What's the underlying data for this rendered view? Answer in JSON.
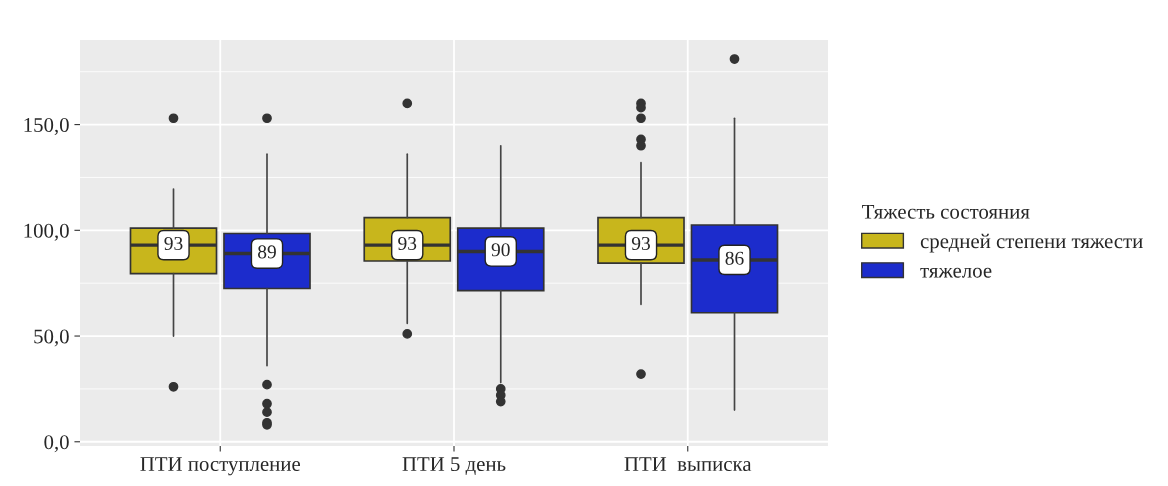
{
  "chart_data": {
    "type": "box",
    "categories": [
      "ПТИ поступление",
      "ПТИ 5 день",
      "ПТИ  выписка"
    ],
    "legend_title": "Тяжесть состояния",
    "legend": "right",
    "grid": true,
    "ylim": [
      -2,
      190
    ],
    "yticks": [
      {
        "value": 0,
        "label": "0,0"
      },
      {
        "value": 50,
        "label": "50,0"
      },
      {
        "value": 100,
        "label": "100,0"
      },
      {
        "value": 150,
        "label": "150,0"
      }
    ],
    "series": [
      {
        "name": "средней степени тяжести",
        "color": "#c8b61c",
        "value_labels": [
          "93",
          "93",
          "93"
        ],
        "boxes": [
          {
            "low": 50,
            "q1": 79.5,
            "median": 93,
            "q3": 101,
            "high": 119.5,
            "outliers": [
              153,
              26
            ]
          },
          {
            "low": 56,
            "q1": 85.5,
            "median": 93,
            "q3": 106,
            "high": 136,
            "outliers": [
              160,
              51
            ]
          },
          {
            "low": 65,
            "q1": 84.5,
            "median": 93,
            "q3": 106,
            "high": 132,
            "outliers": [
              160,
              158,
              153,
              143,
              140,
              32
            ]
          }
        ]
      },
      {
        "name": "тяжелое",
        "color": "#1c2ccc",
        "value_labels": [
          "89",
          "90",
          "86"
        ],
        "boxes": [
          {
            "low": 36,
            "q1": 72.5,
            "median": 89,
            "q3": 98.5,
            "high": 136,
            "outliers": [
              153,
              27,
              18,
              14,
              9,
              8
            ]
          },
          {
            "low": 28,
            "q1": 71.5,
            "median": 90,
            "q3": 101,
            "high": 140,
            "outliers": [
              25,
              22,
              19
            ]
          },
          {
            "low": 15,
            "q1": 61,
            "median": 86,
            "q3": 102.5,
            "high": 153,
            "outliers": [
              181
            ]
          }
        ]
      }
    ]
  }
}
